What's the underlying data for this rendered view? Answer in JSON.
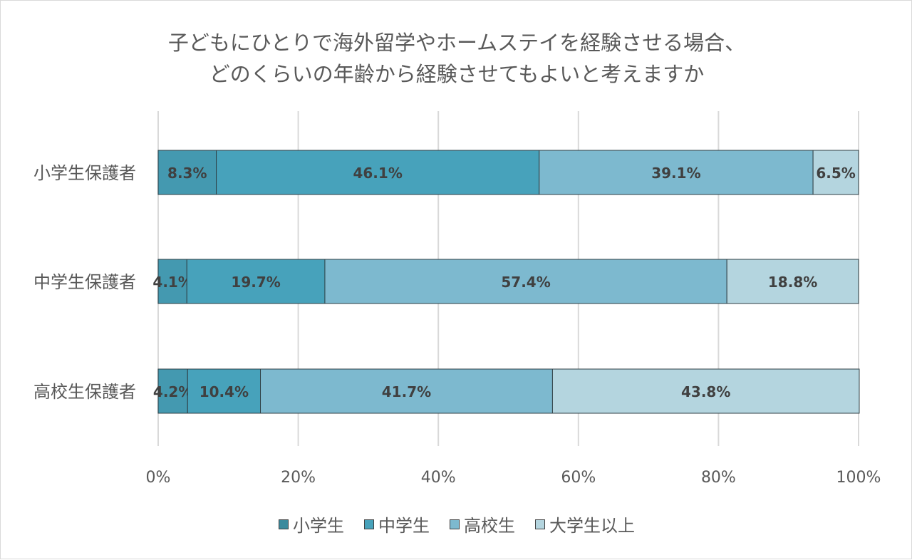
{
  "chart_data": {
    "type": "bar",
    "orientation": "horizontal-stacked-100",
    "title_lines": [
      "子どもにひとりで海外留学やホームステイを経験させる場合、",
      "どのくらいの年齢から経験させてもよいと考えますか"
    ],
    "categories": [
      "小学生保護者",
      "中学生保護者",
      "高校生保護者"
    ],
    "series": [
      {
        "name": "小学生",
        "values": [
          8.3,
          4.1,
          4.2
        ],
        "color": "#4499b0"
      },
      {
        "name": "中学生",
        "values": [
          46.1,
          19.7,
          10.4
        ],
        "color": "#47a2bb"
      },
      {
        "name": "高校生",
        "values": [
          39.1,
          57.4,
          41.7
        ],
        "color": "#7db9cf"
      },
      {
        "name": "大学生以上",
        "values": [
          6.5,
          18.8,
          43.8
        ],
        "color": "#b4d5df"
      }
    ],
    "xlim": [
      0,
      100
    ],
    "xticks": [
      "0%",
      "20%",
      "40%",
      "60%",
      "80%",
      "100%"
    ],
    "grid": true,
    "legend": "bottom"
  }
}
